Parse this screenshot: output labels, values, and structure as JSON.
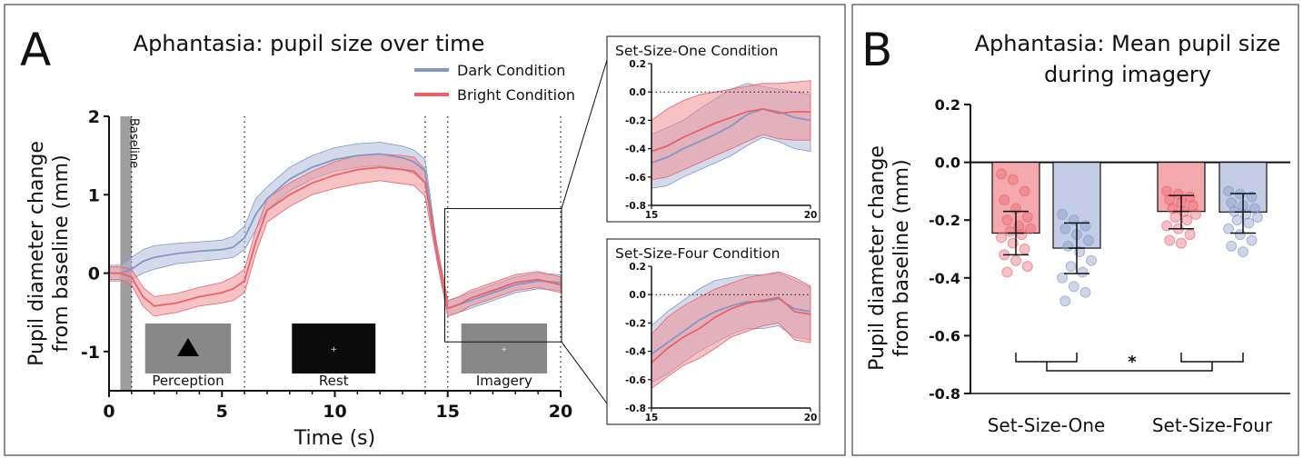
{
  "panels": {
    "a_letter": "A",
    "b_letter": "B"
  },
  "colors": {
    "dark": "#8597c5",
    "dark_band": "#aebbdc",
    "bright": "#e9636b",
    "bright_band": "#f08f93",
    "baseline_bar": "#9e9e9e",
    "stim_gray": "#888888",
    "stim_black": "#0b0b0b"
  },
  "chart_data": [
    {
      "type": "line",
      "title": "Aphantasia: pupil size over time",
      "xlabel": "Time (s)",
      "ylabel": "Pupil diameter change from baseline (mm)",
      "ylabel_lines": [
        "Pupil diameter change",
        "from baseline (mm)"
      ],
      "xlim": [
        0,
        20
      ],
      "ylim": [
        -1.5,
        2
      ],
      "x_ticks": [
        0,
        5,
        10,
        15,
        20
      ],
      "y_ticks": [
        -1,
        0,
        1,
        2
      ],
      "vlines": [
        1,
        6,
        14,
        15,
        20
      ],
      "baseline_band": {
        "x": [
          0.5,
          1.0
        ],
        "label": "Baseline"
      },
      "phase_labels": [
        {
          "label": "Perception",
          "stimulus": "triangle"
        },
        {
          "label": "Rest",
          "stimulus": "fixation-dark"
        },
        {
          "label": "Imagery",
          "stimulus": "fixation-gray"
        }
      ],
      "legend_position": "top-right",
      "series": [
        {
          "name": "Dark Condition",
          "color": "#8597c5",
          "x": [
            0,
            0.5,
            1,
            1.5,
            2,
            3,
            4,
            5,
            5.5,
            6,
            6.5,
            7,
            8,
            9,
            10,
            11,
            12,
            13,
            13.5,
            14,
            14.5,
            15,
            15.5,
            16,
            17,
            18,
            19,
            20
          ],
          "y": [
            0,
            0.0,
            0.05,
            0.15,
            0.2,
            0.25,
            0.28,
            0.3,
            0.33,
            0.45,
            0.75,
            0.95,
            1.2,
            1.35,
            1.45,
            1.5,
            1.52,
            1.47,
            1.42,
            1.3,
            0.3,
            -0.45,
            -0.4,
            -0.35,
            -0.25,
            -0.15,
            -0.1,
            -0.12
          ],
          "upper": [
            0.1,
            0.1,
            0.2,
            0.3,
            0.35,
            0.38,
            0.4,
            0.42,
            0.47,
            0.6,
            0.95,
            1.1,
            1.35,
            1.5,
            1.6,
            1.65,
            1.67,
            1.62,
            1.57,
            1.45,
            0.4,
            -0.35,
            -0.3,
            -0.25,
            -0.15,
            -0.05,
            0.0,
            -0.02
          ],
          "lower": [
            -0.1,
            -0.1,
            -0.08,
            0.0,
            0.05,
            0.12,
            0.15,
            0.18,
            0.2,
            0.3,
            0.55,
            0.8,
            1.05,
            1.2,
            1.3,
            1.35,
            1.37,
            1.32,
            1.27,
            1.15,
            0.2,
            -0.55,
            -0.5,
            -0.45,
            -0.35,
            -0.25,
            -0.2,
            -0.22
          ]
        },
        {
          "name": "Bright Condition",
          "color": "#e9636b",
          "x": [
            0,
            0.5,
            1,
            1.5,
            2,
            3,
            4,
            5,
            5.5,
            6,
            6.5,
            7,
            8,
            9,
            10,
            11,
            12,
            13,
            13.5,
            14,
            14.5,
            15,
            15.5,
            16,
            17,
            18,
            19,
            20
          ],
          "y": [
            0,
            0.0,
            -0.05,
            -0.3,
            -0.42,
            -0.38,
            -0.3,
            -0.25,
            -0.2,
            -0.1,
            0.4,
            0.8,
            1.0,
            1.15,
            1.25,
            1.32,
            1.35,
            1.32,
            1.3,
            1.15,
            0.3,
            -0.45,
            -0.4,
            -0.32,
            -0.22,
            -0.12,
            -0.08,
            -0.15
          ],
          "upper": [
            0.08,
            0.08,
            0.05,
            -0.18,
            -0.3,
            -0.26,
            -0.18,
            -0.12,
            -0.05,
            0.05,
            0.55,
            0.95,
            1.15,
            1.3,
            1.42,
            1.5,
            1.52,
            1.5,
            1.48,
            1.32,
            0.4,
            -0.35,
            -0.3,
            -0.22,
            -0.12,
            -0.02,
            0.02,
            -0.05
          ],
          "lower": [
            -0.08,
            -0.08,
            -0.15,
            -0.42,
            -0.55,
            -0.5,
            -0.42,
            -0.38,
            -0.35,
            -0.25,
            0.25,
            0.65,
            0.85,
            1.0,
            1.08,
            1.14,
            1.18,
            1.14,
            1.12,
            0.98,
            0.2,
            -0.55,
            -0.5,
            -0.42,
            -0.32,
            -0.22,
            -0.18,
            -0.25
          ]
        }
      ]
    },
    {
      "type": "line",
      "title": "Set-Size-One Condition",
      "xlim": [
        15,
        20
      ],
      "ylim": [
        -0.8,
        0.2
      ],
      "x_ticks": [
        15,
        20
      ],
      "y_ticks": [
        0.2,
        0.0,
        -0.2,
        -0.4,
        -0.6,
        -0.8
      ],
      "y_tick_labels": [
        "0.2",
        "0.0",
        "-0.2",
        "-0.4",
        "-0.6",
        "-0.8"
      ],
      "hline": 0,
      "series": [
        {
          "name": "Dark Condition",
          "color": "#8597c5",
          "x": [
            15,
            15.5,
            16,
            16.5,
            17,
            17.5,
            18,
            18.5,
            19,
            19.5,
            20
          ],
          "y": [
            -0.5,
            -0.46,
            -0.4,
            -0.35,
            -0.3,
            -0.24,
            -0.16,
            -0.12,
            -0.14,
            -0.18,
            -0.2
          ],
          "upper": [
            -0.3,
            -0.25,
            -0.2,
            -0.12,
            -0.05,
            0.02,
            0.06,
            0.04,
            0.02,
            0.0,
            -0.02
          ],
          "lower": [
            -0.68,
            -0.66,
            -0.6,
            -0.55,
            -0.5,
            -0.45,
            -0.38,
            -0.32,
            -0.35,
            -0.4,
            -0.42
          ]
        },
        {
          "name": "Bright Condition",
          "color": "#e9636b",
          "x": [
            15,
            15.5,
            16,
            16.5,
            17,
            17.5,
            18,
            18.5,
            19,
            19.5,
            20
          ],
          "y": [
            -0.42,
            -0.38,
            -0.32,
            -0.27,
            -0.22,
            -0.18,
            -0.14,
            -0.12,
            -0.15,
            -0.14,
            -0.14
          ],
          "upper": [
            -0.2,
            -0.12,
            -0.06,
            -0.02,
            0.0,
            0.02,
            0.04,
            0.06,
            0.06,
            0.07,
            0.08
          ],
          "lower": [
            -0.62,
            -0.6,
            -0.55,
            -0.5,
            -0.45,
            -0.4,
            -0.35,
            -0.3,
            -0.33,
            -0.34,
            -0.34
          ]
        }
      ]
    },
    {
      "type": "line",
      "title": "Set-Size-Four Condition",
      "xlim": [
        15,
        20
      ],
      "ylim": [
        -0.8,
        0.2
      ],
      "x_ticks": [
        15,
        20
      ],
      "y_ticks": [
        0.2,
        0.0,
        -0.2,
        -0.4,
        -0.6,
        -0.8
      ],
      "y_tick_labels": [
        "0.2",
        "0.0",
        "-0.2",
        "-0.4",
        "-0.6",
        "-0.8"
      ],
      "hline": 0,
      "series": [
        {
          "name": "Dark Condition",
          "color": "#8597c5",
          "x": [
            15,
            15.5,
            16,
            16.5,
            17,
            17.5,
            18,
            18.5,
            19,
            19.5,
            20
          ],
          "y": [
            -0.42,
            -0.34,
            -0.26,
            -0.18,
            -0.12,
            -0.08,
            -0.05,
            -0.05,
            -0.03,
            -0.1,
            -0.12
          ],
          "upper": [
            -0.22,
            -0.12,
            -0.04,
            0.04,
            0.1,
            0.12,
            0.14,
            0.14,
            0.15,
            0.1,
            0.05
          ],
          "lower": [
            -0.62,
            -0.56,
            -0.48,
            -0.4,
            -0.34,
            -0.28,
            -0.24,
            -0.24,
            -0.22,
            -0.3,
            -0.32
          ]
        },
        {
          "name": "Bright Condition",
          "color": "#e9636b",
          "x": [
            15,
            15.5,
            16,
            16.5,
            17,
            17.5,
            18,
            18.5,
            19,
            19.5,
            20
          ],
          "y": [
            -0.48,
            -0.38,
            -0.3,
            -0.24,
            -0.16,
            -0.1,
            -0.06,
            -0.04,
            -0.02,
            -0.12,
            -0.14
          ],
          "upper": [
            -0.28,
            -0.16,
            -0.08,
            -0.02,
            0.04,
            0.08,
            0.12,
            0.14,
            0.16,
            0.12,
            0.06
          ],
          "lower": [
            -0.66,
            -0.58,
            -0.5,
            -0.45,
            -0.38,
            -0.3,
            -0.26,
            -0.22,
            -0.2,
            -0.32,
            -0.34
          ]
        }
      ]
    },
    {
      "type": "bar",
      "title": "Aphantasia: Mean pupil size during imagery",
      "title_lines": [
        "Aphantasia: Mean pupil size",
        "during imagery"
      ],
      "ylabel": "Pupil diameter change from baseline (mm)",
      "ylabel_lines": [
        "Pupil diameter change",
        "from baseline (mm)"
      ],
      "ylim": [
        -0.8,
        0.2
      ],
      "y_ticks": [
        0.2,
        0.0,
        -0.2,
        -0.4,
        -0.6,
        -0.8
      ],
      "y_tick_labels": [
        "0.2",
        "0.0",
        "-0.2",
        "-0.4",
        "-0.6",
        "-0.8"
      ],
      "categories": [
        "Set-Size-One",
        "Set-Size-Four"
      ],
      "significance": "*",
      "series": [
        {
          "color": "#e9636b",
          "means": [
            -0.245,
            -0.17
          ],
          "error": [
            [
              -0.32,
              -0.17
            ],
            [
              -0.23,
              -0.115
            ]
          ],
          "points": [
            [
              -0.04,
              -0.06,
              -0.1,
              -0.13,
              -0.16,
              -0.19,
              -0.2,
              -0.22,
              -0.23,
              -0.24,
              -0.25,
              -0.26,
              -0.28,
              -0.3,
              -0.32,
              -0.34,
              -0.36,
              -0.38
            ],
            [
              -0.1,
              -0.11,
              -0.12,
              -0.13,
              -0.14,
              -0.15,
              -0.16,
              -0.17,
              -0.18,
              -0.19,
              -0.2,
              -0.22,
              -0.23,
              -0.25,
              -0.27,
              -0.28
            ]
          ]
        },
        {
          "color": "#8597c5",
          "means": [
            -0.297,
            -0.172
          ],
          "error": [
            [
              -0.385,
              -0.21
            ],
            [
              -0.245,
              -0.108
            ]
          ],
          "points": [
            [
              -0.18,
              -0.2,
              -0.22,
              -0.23,
              -0.25,
              -0.27,
              -0.29,
              -0.31,
              -0.34,
              -0.36,
              -0.38,
              -0.4,
              -0.43,
              -0.45,
              -0.48
            ],
            [
              -0.1,
              -0.11,
              -0.12,
              -0.14,
              -0.15,
              -0.16,
              -0.17,
              -0.18,
              -0.19,
              -0.2,
              -0.21,
              -0.23,
              -0.25,
              -0.27,
              -0.29,
              -0.31
            ]
          ]
        }
      ]
    }
  ]
}
